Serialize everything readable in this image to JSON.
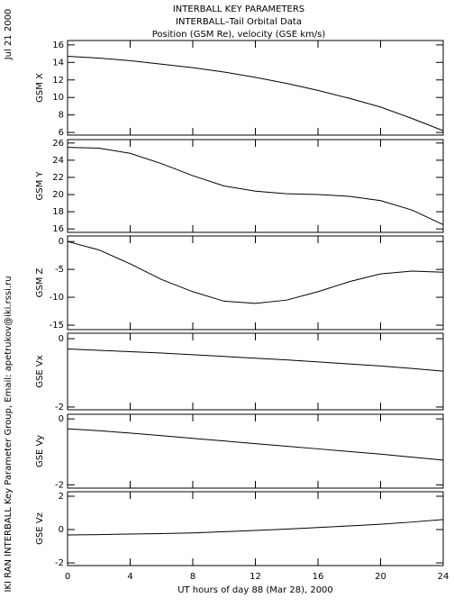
{
  "header": {
    "lines": [
      "INTERBALL KEY PARAMETERS",
      "INTERBALL–Tail Orbital Data",
      "Position (GSM Re), velocity (GSE km/s)"
    ]
  },
  "side_text": {
    "date": "Jul 21 2000",
    "credit": "IKI RAN INTERBALL Key Parameter Group, Email: apetrukov@iki.rssi.ru"
  },
  "chart_data": [
    {
      "type": "line",
      "ylabel": "GSM X",
      "color": "#000000",
      "x": [
        0,
        2,
        4,
        6,
        8,
        10,
        12,
        14,
        16,
        18,
        20,
        22,
        24
      ],
      "values": [
        14.7,
        14.5,
        14.2,
        13.8,
        13.4,
        12.9,
        12.3,
        11.6,
        10.8,
        9.9,
        8.9,
        7.6,
        6.2
      ],
      "ylim": [
        5.7,
        16.5
      ],
      "yticks": [
        6,
        8,
        10,
        12,
        14,
        16
      ]
    },
    {
      "type": "line",
      "ylabel": "GSM Y",
      "color": "#000000",
      "x": [
        0,
        2,
        4,
        6,
        8,
        10,
        12,
        14,
        16,
        18,
        20,
        22,
        24
      ],
      "values": [
        25.5,
        25.4,
        24.8,
        23.6,
        22.2,
        21.0,
        20.4,
        20.1,
        20.0,
        19.8,
        19.3,
        18.2,
        16.5
      ],
      "ylim": [
        15.6,
        26.4
      ],
      "yticks": [
        16,
        18,
        20,
        22,
        24,
        26
      ]
    },
    {
      "type": "line",
      "ylabel": "GSM Z",
      "color": "#000000",
      "x": [
        0,
        2,
        4,
        6,
        8,
        10,
        12,
        14,
        16,
        18,
        20,
        22,
        24
      ],
      "values": [
        0,
        -1.5,
        -4,
        -6.8,
        -9,
        -10.7,
        -11.1,
        -10.5,
        -9,
        -7.2,
        -5.8,
        -5.3,
        -5.5
      ],
      "ylim": [
        -15.8,
        1
      ],
      "yticks": [
        -15,
        -10,
        -5,
        0
      ]
    },
    {
      "type": "line",
      "ylabel": "GSE Vx",
      "color": "#000000",
      "x": [
        0,
        2,
        4,
        6,
        8,
        10,
        12,
        14,
        16,
        18,
        20,
        22,
        24
      ],
      "values": [
        -0.3,
        -0.34,
        -0.38,
        -0.42,
        -0.47,
        -0.52,
        -0.57,
        -0.62,
        -0.68,
        -0.74,
        -0.8,
        -0.87,
        -0.95
      ],
      "ylim": [
        -2.08,
        0.16
      ],
      "yticks": [
        -2,
        0
      ]
    },
    {
      "type": "line",
      "ylabel": "GSE Vy",
      "color": "#000000",
      "x": [
        0,
        2,
        4,
        6,
        8,
        10,
        12,
        14,
        16,
        18,
        20,
        22,
        24
      ],
      "values": [
        -0.3,
        -0.36,
        -0.43,
        -0.51,
        -0.59,
        -0.67,
        -0.75,
        -0.83,
        -0.91,
        -0.99,
        -1.07,
        -1.16,
        -1.25
      ],
      "ylim": [
        -2.1,
        0.14
      ],
      "yticks": [
        -2,
        0
      ]
    },
    {
      "type": "line",
      "ylabel": "GSE Vz",
      "color": "#000000",
      "x": [
        0,
        2,
        4,
        6,
        8,
        10,
        12,
        14,
        16,
        18,
        20,
        22,
        24
      ],
      "values": [
        -0.32,
        -0.3,
        -0.27,
        -0.24,
        -0.2,
        -0.13,
        -0.05,
        0.03,
        0.12,
        0.22,
        0.32,
        0.45,
        0.6
      ],
      "ylim": [
        -2.16,
        2.27
      ],
      "yticks": [
        -2,
        0,
        2
      ],
      "xlabel": "UT hours of day  88 (Mar 28), 2000",
      "xlim": [
        0,
        24
      ],
      "xticks": [
        0,
        4,
        8,
        12,
        16,
        20,
        24
      ]
    }
  ]
}
